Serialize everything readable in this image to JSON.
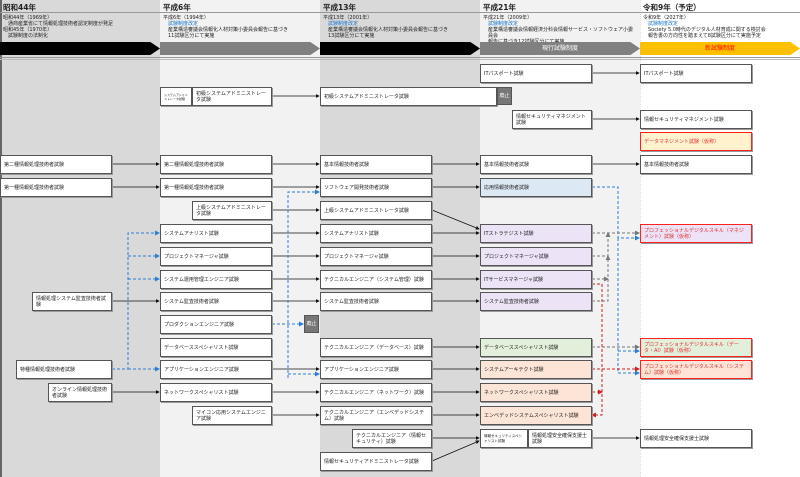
{
  "eras": [
    {
      "year": "昭和44年",
      "lines": [
        "昭和44年（1969年）",
        "通商産業省にて情報処理技術者認定制度が発足",
        "昭和45年（1970年）",
        "試験制度の法制化"
      ],
      "band": "",
      "band_color": "#000000"
    },
    {
      "year": "平成6年",
      "lines": [
        "平成6年（1994年）",
        "試験制度改定",
        "産業構造審議会情報化人材対策小委員会報告に基づき",
        "11試験区分にて実施"
      ],
      "band": "",
      "band_color": "#808080"
    },
    {
      "year": "平成13年",
      "lines": [
        "平成13年（2001年）",
        "試験制度改定",
        "産業構造審議会情報化人材対策小委員会報告に基づき",
        "13試験区分にて実施"
      ],
      "band": "",
      "band_color": "#000000"
    },
    {
      "year": "平成21年",
      "lines": [
        "平成21年（2009年）",
        "試験制度改定",
        "産業構造審議会情報経済分科会情報サービス・ソフトウェア小委員会",
        "報告に基づき12試験区分にて実施"
      ],
      "band": "現行試験制度",
      "band_color": "#808080"
    },
    {
      "year": "令和9年（予定）",
      "lines": [
        "令和9年（2027年）",
        "試験制度改定",
        "Society 5.0時代のデジタル人材育成に関する検討会",
        "報告書の方向性を踏まえて8試験区分にて実施予定"
      ],
      "band": "新試験制度",
      "band_color": "#ffc000"
    }
  ],
  "stop_label": "廃止",
  "col1": {
    "second": "第二種情報処理技術者試験",
    "first": "第一種情報処理技術者試験",
    "audit": "情報処理システム監査技術者試験",
    "special": "特種情報処理技術者試験",
    "online": "オンライン情報処理技術者試験"
  },
  "col2": {
    "sa_small": "システムアドミニストレータ試験",
    "sa_junior": "初級システムアドミニストレータ試験",
    "second": "第二種情報処理技術者試験",
    "first": "第一種情報処理技術者試験",
    "sa_senior": "上級システムアドミニストレータ試験",
    "analyst": "システムアナリスト試験",
    "pm": "プロジェクトマネージャ試験",
    "ops": "システム運用管理エンジニア試験",
    "audit": "システム監査技術者試験",
    "production": "プロダクションエンジニア試験",
    "db": "データベーススペシャリスト試験",
    "app": "アプリケーションエンジニア試験",
    "network": "ネットワークスペシャリスト試験",
    "micro": "マイコン応用システムエンジニア試験"
  },
  "col3": {
    "sa_junior": "初級システムアドミニストレータ試験",
    "fe": "基本情報技術者試験",
    "sw": "ソフトウェア開発技術者試験",
    "sa_senior": "上級システムアドミニストレータ試験",
    "analyst": "システムアナリスト試験",
    "pm": "プロジェクトマネージャ試験",
    "te_sys": "テクニカルエンジニア（システム管理）試験",
    "audit": "システム監査技術者試験",
    "te_db": "テクニカルエンジニア（データベース）試験",
    "app": "アプリケーションエンジニア試験",
    "te_nw": "テクニカルエンジニア（ネットワーク）試験",
    "te_emb": "テクニカルエンジニア（エンベデッドシステム）試験",
    "te_sec": "テクニカルエンジニア（情報セキュリティ）試験",
    "sec_admin": "情報セキュリティアドミニストレータ試験"
  },
  "col4": {
    "ip": "ITパスポート試験",
    "sg": "情報セキュリティマネジメント試験",
    "fe": "基本情報技術者試験",
    "ap": "応用情報技術者試験",
    "st": "ITストラテジスト試験",
    "pm": "プロジェクトマネージャ試験",
    "sm": "ITサービスマネージャ試験",
    "au": "システム監査技術者試験",
    "db": "データベーススペシャリスト試験",
    "sa": "システムアーキテクト試験",
    "nw": "ネットワークスペシャリスト試験",
    "es": "エンベデッドシステムスペシャリスト試験",
    "sc": "情報セキュリティスペシャリスト試験",
    "riss": "情報処理安全確保支援士試験"
  },
  "col5": {
    "ip": "ITパスポート試験",
    "sg": "情報セキュリティマネジメント試験",
    "dm": "データマネジメント試験（仮称）",
    "fe": "基本情報技術者試験",
    "pds_m": "プロフェッショナルデジタルスキル（マネジメント）試験（仮称）",
    "pds_d": "プロフェッショナルデジタルスキル（データ・AI）試験（仮称）",
    "pds_s": "プロフェッショナルデジタルスキル（システム）試験（仮称）",
    "riss": "情報処理安全確保支援士試験"
  },
  "colors": {
    "applied": "#dde8f5",
    "management": "#ece3f7",
    "data": "#e2efda",
    "system": "#fce4d6",
    "data_mgmt": "#fff2cc",
    "new_border": "#ff2020",
    "blue_link": "#2a7fd4",
    "red_link": "#d02020",
    "gray_link": "#777777"
  }
}
